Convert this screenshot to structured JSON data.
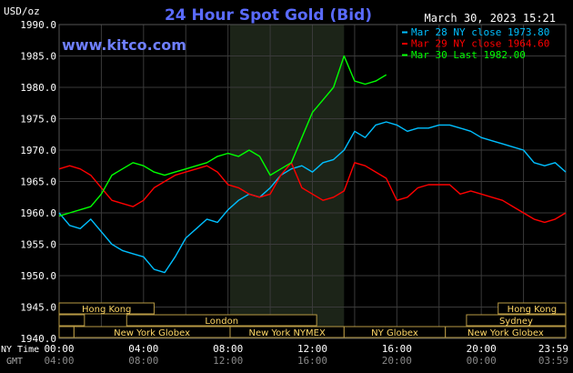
{
  "header": {
    "title": "24 Hour Spot Gold (Bid)",
    "timestamp": "March 30, 2023 15:21",
    "unit_label": "USD/oz",
    "watermark": "www.kitco.com"
  },
  "legend": [
    {
      "text": "Mar 28 NY close 1973.80",
      "color": "#00bfff"
    },
    {
      "text": "Mar 29 NY close 1964.60",
      "color": "#ff0000"
    },
    {
      "text": "Mar 30 Last 1982.00",
      "color": "#00ff00"
    }
  ],
  "sessions": [
    {
      "label": "Hong Kong",
      "row": 0
    },
    {
      "label": "London",
      "row": 1
    },
    {
      "label": "New York Globex",
      "row": 2
    },
    {
      "label": "New York NYMEX",
      "row": 2
    },
    {
      "label": "NY Globex",
      "row": 2
    },
    {
      "label": "Hong Kong",
      "row": 0
    },
    {
      "label": "Sydney",
      "row": 1
    },
    {
      "label": "New York Globex",
      "row": 2
    }
  ],
  "time_rows": {
    "ny_label": "NY Time",
    "gmt_label": "GMT",
    "ny_ticks": [
      "00:00",
      "04:00",
      "08:00",
      "12:00",
      "16:00",
      "20:00",
      "23:59"
    ],
    "gmt_ticks": [
      "04:00",
      "08:00",
      "12:00",
      "16:00",
      "20:00",
      "00:00",
      "03:59"
    ]
  },
  "chart_data": {
    "type": "line",
    "title": "24 Hour Spot Gold (Bid)",
    "ylabel": "USD/oz",
    "xlabel": "NY Time",
    "ylim": [
      1940,
      1990
    ],
    "xlim": [
      0,
      24
    ],
    "y_ticks": [
      "1990.0",
      "1985.0",
      "1980.0",
      "1975.0",
      "1970.0",
      "1965.0",
      "1960.0",
      "1955.0",
      "1950.0",
      "1945.0",
      "1940.0"
    ],
    "grid": true,
    "legend_position": "top-right",
    "highlight_range_hours": [
      8.1,
      13.5
    ],
    "series": [
      {
        "name": "Mar 28 NY close 1973.80",
        "color": "#00bfff",
        "x": [
          0,
          0.5,
          1,
          1.5,
          2,
          2.5,
          3,
          3.5,
          4,
          4.5,
          5,
          5.5,
          6,
          6.5,
          7,
          7.5,
          8,
          8.5,
          9,
          9.5,
          10,
          10.5,
          11,
          11.5,
          12,
          12.5,
          13,
          13.5,
          14,
          14.5,
          15,
          15.5,
          16,
          16.5,
          17,
          17.5,
          18,
          18.5,
          19,
          19.5,
          20,
          20.5,
          21,
          21.5,
          22,
          22.5,
          23,
          23.5,
          24
        ],
        "y": [
          1960,
          1958,
          1957.5,
          1959,
          1957,
          1955,
          1954,
          1953.5,
          1953,
          1951,
          1950.5,
          1953,
          1956,
          1957.5,
          1959,
          1958.5,
          1960.5,
          1962,
          1963,
          1962.5,
          1964,
          1966,
          1967,
          1967.5,
          1966.5,
          1968,
          1968.5,
          1970,
          1973,
          1972,
          1974,
          1974.5,
          1974,
          1973,
          1973.5,
          1973.5,
          1974,
          1974,
          1973.5,
          1973,
          1972,
          1971.5,
          1971,
          1970.5,
          1970,
          1968,
          1967.5,
          1968,
          1966.5
        ]
      },
      {
        "name": "Mar 29 NY close 1964.60",
        "color": "#ff0000",
        "x": [
          0,
          0.5,
          1,
          1.5,
          2,
          2.5,
          3,
          3.5,
          4,
          4.5,
          5,
          5.5,
          6,
          6.5,
          7,
          7.5,
          8,
          8.5,
          9,
          9.5,
          10,
          10.5,
          11,
          11.5,
          12,
          12.5,
          13,
          13.5,
          14,
          14.5,
          15,
          15.5,
          16,
          16.5,
          17,
          17.5,
          18,
          18.5,
          19,
          19.5,
          20,
          20.5,
          21,
          21.5,
          22,
          22.5,
          23,
          23.5,
          24
        ],
        "y": [
          1967,
          1967.5,
          1967,
          1966,
          1964,
          1962,
          1961.5,
          1961,
          1962,
          1964,
          1965,
          1966,
          1966.5,
          1967,
          1967.5,
          1966.5,
          1964.5,
          1964,
          1963,
          1962.5,
          1963,
          1966,
          1968,
          1964,
          1963,
          1962,
          1962.5,
          1963.5,
          1968,
          1967.5,
          1966.5,
          1965.5,
          1962,
          1962.5,
          1964,
          1964.5,
          1964.5,
          1964.5,
          1963,
          1963.5,
          1963,
          1962.5,
          1962,
          1961,
          1960,
          1959,
          1958.5,
          1959,
          1960
        ]
      },
      {
        "name": "Mar 30 Last 1982.00",
        "color": "#00ff00",
        "x": [
          0,
          0.5,
          1,
          1.5,
          2,
          2.5,
          3,
          3.5,
          4,
          4.5,
          5,
          5.5,
          6,
          6.5,
          7,
          7.5,
          8,
          8.5,
          9,
          9.5,
          10,
          10.5,
          11,
          11.5,
          12,
          12.5,
          13,
          13.5,
          14,
          14.5,
          15,
          15.5
        ],
        "y": [
          1959.5,
          1960,
          1960.5,
          1961,
          1963,
          1966,
          1967,
          1968,
          1967.5,
          1966.5,
          1966,
          1966.5,
          1967,
          1967.5,
          1968,
          1969,
          1969.5,
          1969,
          1970,
          1969,
          1966,
          1967,
          1968,
          1972,
          1976,
          1978,
          1980,
          1985,
          1981,
          1980.5,
          1981,
          1982
        ]
      }
    ]
  }
}
